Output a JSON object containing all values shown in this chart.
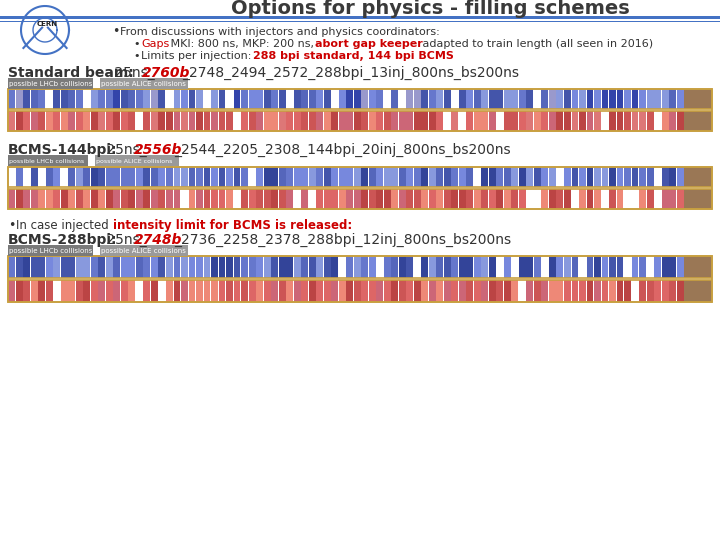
{
  "title": "Options for physics - filling schemes",
  "title_color": "#3a3a3a",
  "bg_color": "#ffffff",
  "header_line_color1": "#4472c4",
  "header_line_color2": "#4472c4",
  "bullet1": "From discussions with injectors and physics coordinators:",
  "sub_bullet1a_red": "Gaps",
  "sub_bullet1a_black": " MKI: 800 ns, MKP: 200 ns, ",
  "sub_bullet1a_bold_red": "abort gap keeper",
  "sub_bullet1a_end": " adapted to train length (all seen in 2016)",
  "sub_bullet2_black": "Limits per injection: ",
  "sub_bullet2_red": "288 bpi standard, 144 bpi BCMS",
  "s1_bold": "Standard beam:",
  "s1_norm": " 25ns_",
  "s1_red": "2760b",
  "s1_end": "_2748_2494_2572_288bpi_13inj_800ns_bs200ns",
  "s2_bold": "BCMS-144bpi:",
  "s2_norm": " 25ns_",
  "s2_red": "2556b",
  "s2_end": "_2544_2205_2308_144bpi_20inj_800ns_bs200ns",
  "bullet3_black": "In case injected ",
  "bullet3_red": "intensity limit for BCMS is released:",
  "s3_bold": "BCMS-288bpi:",
  "s3_norm": " 25ns_",
  "s3_red": "2748b",
  "s3_end": "_2736_2258_2378_288bpi_12inj_800ns_bs200ns",
  "lhcb_label": "possible LHCb collisions",
  "alice_label": "possible ALICE collisions",
  "lhcb_bg": "#7a7a7a",
  "alice_bg": "#9a9a9a",
  "red": "#cc0000",
  "black": "#333333",
  "bar_border": "#c8a040",
  "end_cap_color": "#9a7755"
}
